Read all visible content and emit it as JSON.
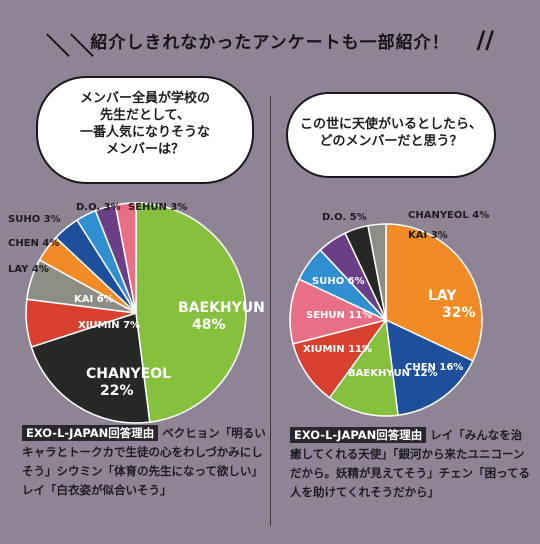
{
  "header": {
    "title": "紹介しきれなかったアンケートも一部紹介！",
    "slash_left": "＼＼",
    "slash_right": "//"
  },
  "left": {
    "question": [
      "メンバー全員が学校の",
      "先生だとして、",
      "一番人気になりそうな",
      "メンバーは？"
    ],
    "reason_tag": "EXO-L-JAPAN回答理由",
    "reason_text": "ベクヒョン「明るいキャラとトークカで生徒の心をわしづかみにしそう」シウミン「体育の先生になって欲しい」レイ「白衣姿が似合いそう」"
  },
  "right": {
    "question": [
      "この世に天使がいるとしたら、",
      "どのメンバーだと思う？"
    ],
    "reason_tag": "EXO-L-JAPAN回答理由",
    "reason_text": "レイ「みんなを治癒してくれる天使」「銀河から来たユニコーンだから。妖精が見えてそう」チェン「困ってる人を助けてくれそうだから」"
  },
  "chart_data": [
    {
      "type": "pie",
      "title": "メンバー全員が学校の先生だとして、一番人気になりそうなメンバーは？",
      "slices": [
        {
          "name": "BAEKHYUN",
          "value": 48,
          "color": "#86c13d"
        },
        {
          "name": "CHANYEOL",
          "value": 22,
          "color": "#262826"
        },
        {
          "name": "XIUMIN",
          "value": 7,
          "color": "#d8402f"
        },
        {
          "name": "KAI",
          "value": 6,
          "color": "#8d8d85"
        },
        {
          "name": "LAY",
          "value": 4,
          "color": "#f28a25"
        },
        {
          "name": "CHEN",
          "value": 4,
          "color": "#1e4f9c"
        },
        {
          "name": "SUHO",
          "value": 3,
          "color": "#2f8fd0"
        },
        {
          "name": "D.O.",
          "value": 3,
          "color": "#6a3f86"
        },
        {
          "name": "SEHUN",
          "value": 3,
          "color": "#e86f86"
        }
      ]
    },
    {
      "type": "pie",
      "title": "この世に天使がいるとしたら、どのメンバーだと思う？",
      "slices": [
        {
          "name": "LAY",
          "value": 32,
          "color": "#f28a25"
        },
        {
          "name": "CHEN",
          "value": 16,
          "color": "#1e4f9c"
        },
        {
          "name": "BAEKHYUN",
          "value": 12,
          "color": "#86c13d"
        },
        {
          "name": "XIUMIN",
          "value": 11,
          "color": "#d8402f"
        },
        {
          "name": "SEHUN",
          "value": 11,
          "color": "#e86f86"
        },
        {
          "name": "SUHO",
          "value": 6,
          "color": "#2f8fd0"
        },
        {
          "name": "D.O.",
          "value": 5,
          "color": "#6a3f86"
        },
        {
          "name": "CHANYEOL",
          "value": 4,
          "color": "#262826"
        },
        {
          "name": "KAI",
          "value": 3,
          "color": "#8d8d85"
        }
      ]
    }
  ]
}
